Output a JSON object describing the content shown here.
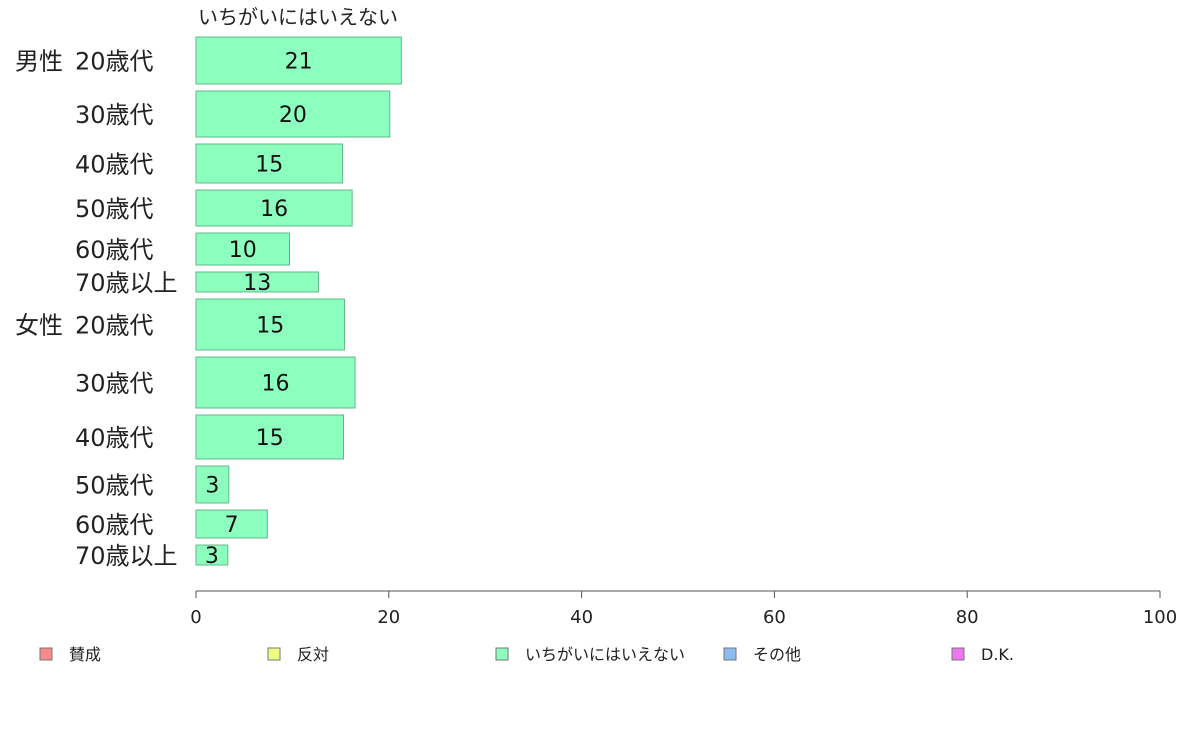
{
  "chart_data": {
    "type": "bar",
    "orientation": "horizontal",
    "stacked": true,
    "series_header": "いちがいにはいえない",
    "categories": [
      {
        "group": "男性",
        "label": "20歳代",
        "thickness": 47
      },
      {
        "group": "",
        "label": "30歳代",
        "thickness": 46
      },
      {
        "group": "",
        "label": "40歳代",
        "thickness": 39
      },
      {
        "group": "",
        "label": "50歳代",
        "thickness": 36
      },
      {
        "group": "",
        "label": "60歳代",
        "thickness": 32
      },
      {
        "group": "",
        "label": "70歳以上",
        "thickness": 20
      },
      {
        "group": "女性",
        "label": "20歳代",
        "thickness": 51
      },
      {
        "group": "",
        "label": "30歳代",
        "thickness": 51
      },
      {
        "group": "",
        "label": "40歳代",
        "thickness": 44
      },
      {
        "group": "",
        "label": "50歳代",
        "thickness": 37
      },
      {
        "group": "",
        "label": "60歳代",
        "thickness": 28
      },
      {
        "group": "",
        "label": "70歳以上",
        "thickness": 20
      }
    ],
    "series": [
      {
        "name": "いちがいにはいえない",
        "color": "#8cffbf",
        "values": [
          21.3,
          20.1,
          15.2,
          16.2,
          9.7,
          12.7,
          15.4,
          16.5,
          15.3,
          3.4,
          7.4,
          3.3
        ],
        "labels": [
          "21",
          "20",
          "15",
          "16",
          "10",
          "13",
          "15",
          "16",
          "15",
          "3",
          "7",
          "3"
        ]
      }
    ],
    "xlim": [
      0,
      100
    ],
    "xticks": [
      0,
      20,
      40,
      60,
      80,
      100
    ],
    "grid": false,
    "legend_position": "bottom",
    "legend": [
      {
        "name": "賛成",
        "color": "#f78a8a"
      },
      {
        "name": "反対",
        "color": "#eeff80"
      },
      {
        "name": "いちがいにはいえない",
        "color": "#8cffbf"
      },
      {
        "name": "その他",
        "color": "#8cbcf2"
      },
      {
        "name": "D.K.",
        "color": "#ee77f2"
      }
    ]
  }
}
